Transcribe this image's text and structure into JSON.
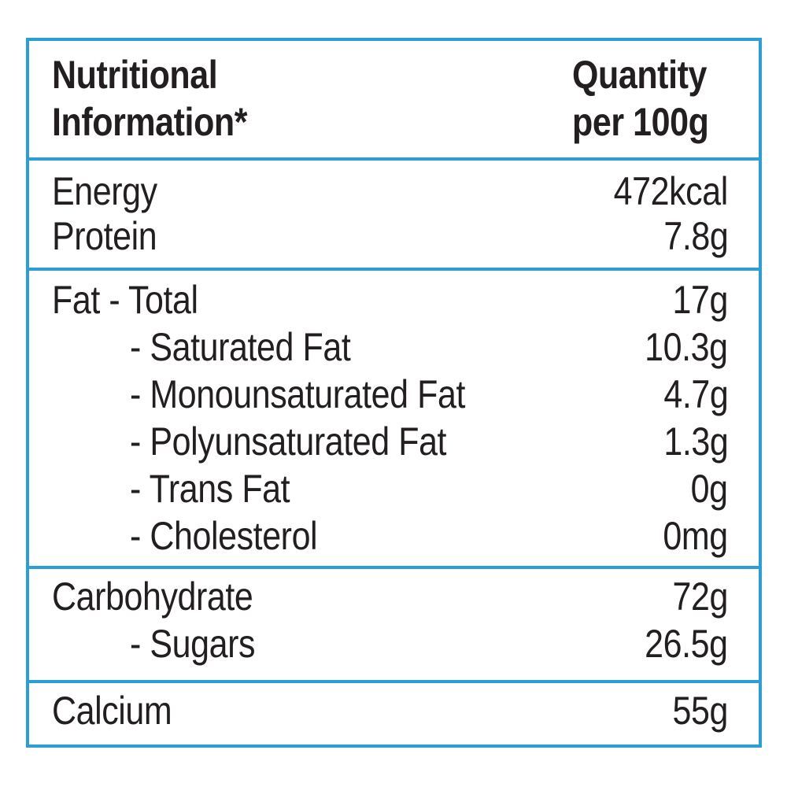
{
  "header": {
    "nutrient": [
      "Nutritional",
      "Information*"
    ],
    "quantity": [
      "Quantity",
      "per 100g"
    ]
  },
  "sections": [
    [
      [
        "Energy",
        "472kcal"
      ],
      [
        "Protein",
        "7.8g"
      ]
    ],
    [
      [
        "Fat - Total",
        "17g"
      ],
      [
        "- Saturated Fat",
        "10.3g"
      ],
      [
        "- Monounsaturated Fat",
        "4.7g"
      ],
      [
        "- Polyunsaturated Fat",
        "1.3g"
      ],
      [
        "- Trans Fat",
        "0g"
      ],
      [
        "- Cholesterol",
        "0mg"
      ]
    ],
    [
      [
        "Carbohydrate",
        "72g"
      ],
      [
        "- Sugars",
        "26.5g"
      ]
    ],
    [
      [
        "Calcium",
        "55g"
      ]
    ]
  ]
}
